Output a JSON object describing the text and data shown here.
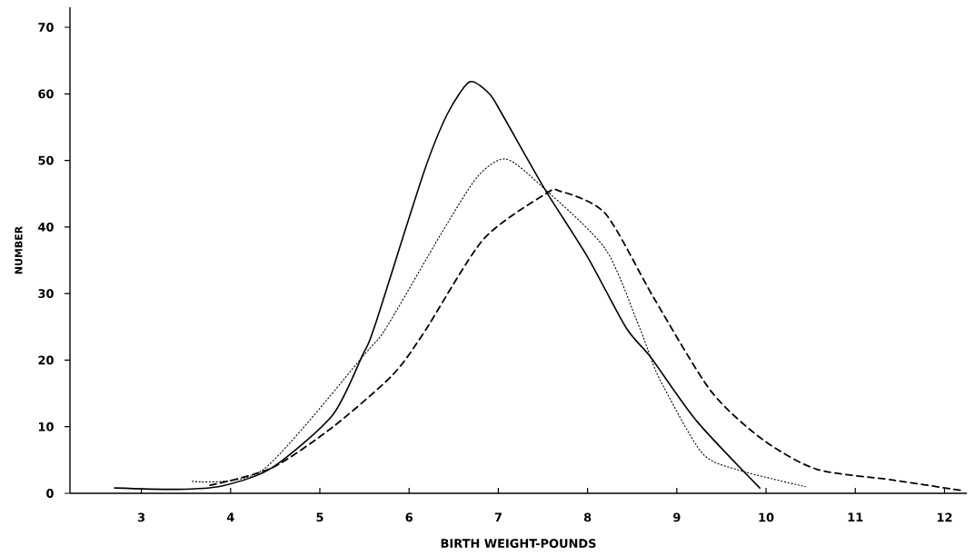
{
  "chart_data": {
    "type": "line",
    "xlabel": "BIRTH WEIGHT-POUNDS",
    "ylabel": "NUMBER",
    "xlim": [
      2.2,
      12.25
    ],
    "ylim": [
      0,
      73
    ],
    "xticks": [
      3,
      4,
      5,
      6,
      7,
      8,
      9,
      10,
      11,
      12
    ],
    "yticks": [
      0,
      10,
      20,
      30,
      40,
      50,
      60,
      70
    ],
    "series": [
      {
        "color": "#000000",
        "line_style": "solid",
        "x": [
          2.7,
          3.4,
          3.9,
          4.46,
          5.14,
          5.48,
          5.61,
          6.16,
          6.43,
          6.68,
          6.9,
          7.04,
          7.52,
          8.0,
          8.43,
          8.71,
          9.22,
          9.93
        ],
        "values": [
          0.8,
          0.6,
          1.1,
          3.8,
          11.7,
          20.8,
          24.9,
          48,
          57,
          61.8,
          60,
          57,
          45.7,
          35.5,
          24.9,
          20.4,
          10.9,
          0.8
        ]
      },
      {
        "color": "#000000",
        "line_style": "dotted",
        "x": [
          3.57,
          4.36,
          5.51,
          5.75,
          6.36,
          6.77,
          7.09,
          7.52,
          8.2,
          8.57,
          8.67,
          8.81,
          9.28,
          9.69,
          10.44
        ],
        "values": [
          1.8,
          3.5,
          21,
          25,
          39,
          47.6,
          50.2,
          45.7,
          36.7,
          25.3,
          21.8,
          17.1,
          6.1,
          3.5,
          1.0
        ]
      },
      {
        "color": "#000000",
        "line_style": "dashed",
        "x": [
          3.77,
          4.46,
          5.14,
          5.81,
          6.16,
          6.83,
          7.52,
          7.69,
          8.2,
          8.74,
          9.38,
          9.96,
          10.57,
          11.42,
          12.2
        ],
        "values": [
          1.2,
          3.8,
          9.9,
          17.7,
          24,
          38.1,
          44.9,
          45.4,
          42,
          29.4,
          15.4,
          8.1,
          3.6,
          2.0,
          0.4
        ]
      }
    ]
  }
}
